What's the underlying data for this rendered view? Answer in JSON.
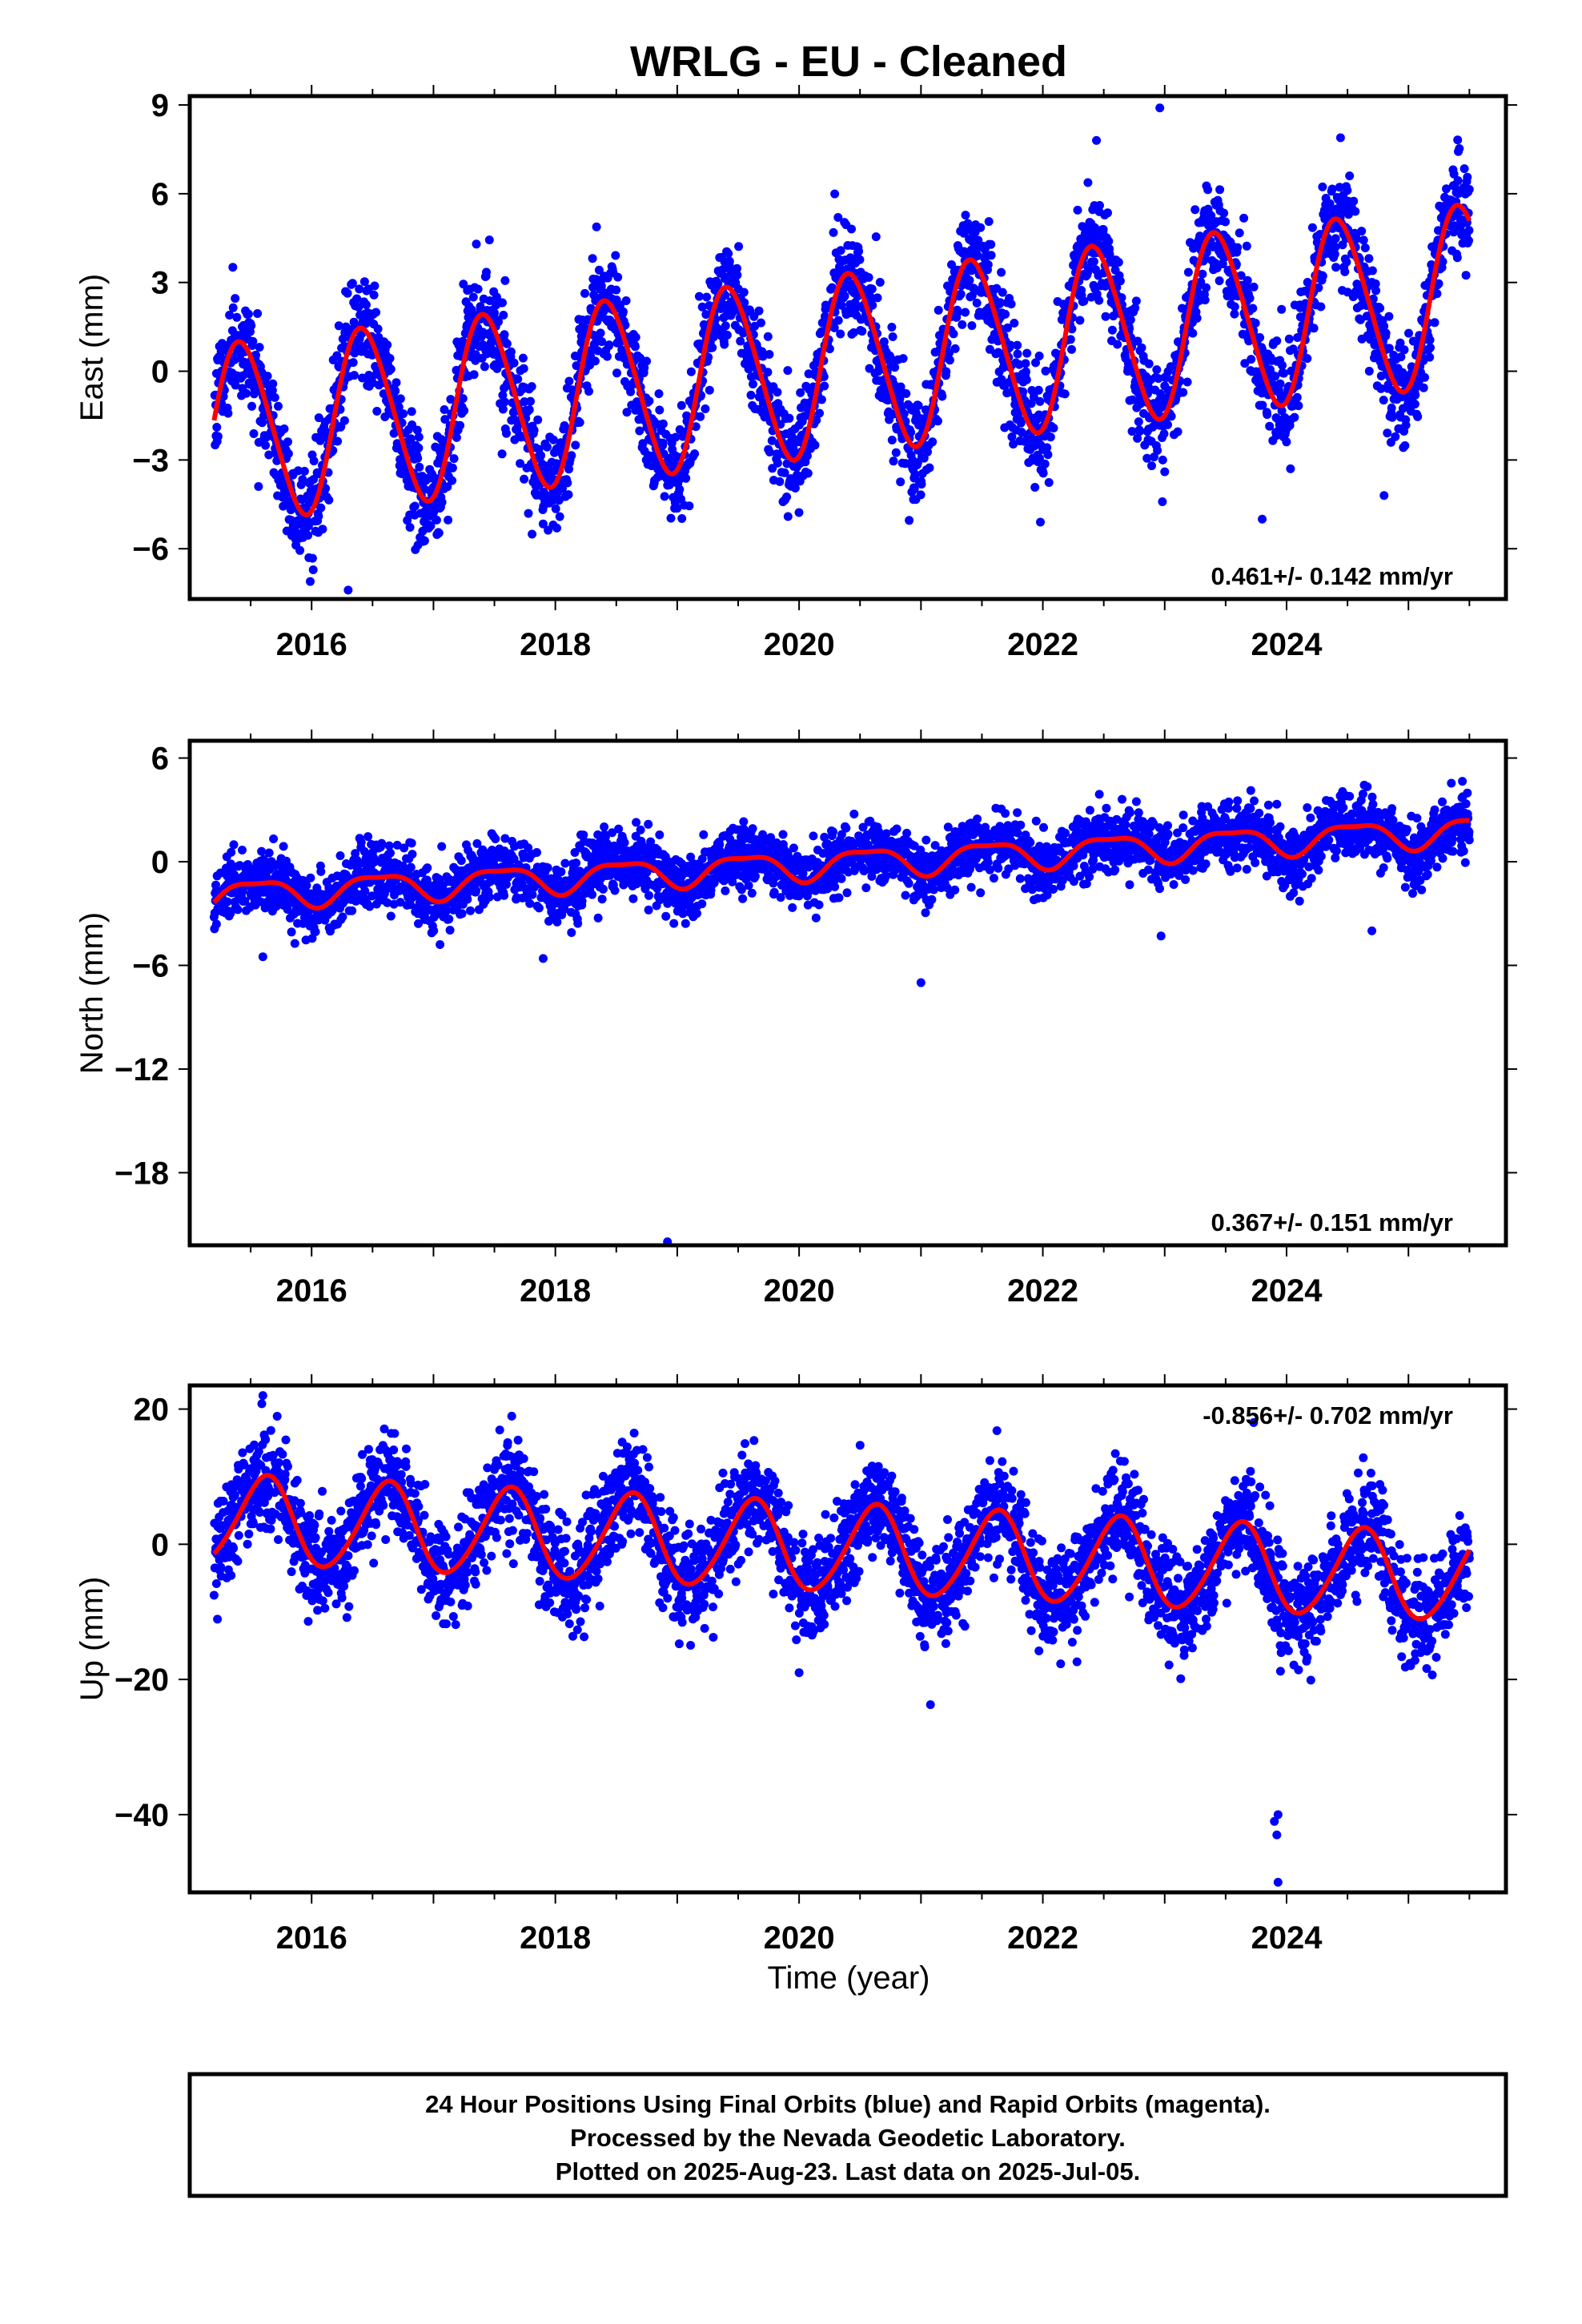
{
  "title": "WRLG  - EU - Cleaned",
  "xlabel": "Time (year)",
  "footer": [
    "24 Hour Positions Using Final Orbits (blue) and Rapid Orbits (magenta).",
    "Processed by the Nevada Geodetic Laboratory.",
    "Plotted on 2025-Aug-23. Last data on 2025-Jul-05."
  ],
  "colors": {
    "points": "#0000ff",
    "model": "#ff0000",
    "frame": "#000000"
  },
  "chart_data": [
    {
      "type": "scatter",
      "ylabel": "East (mm)",
      "rate": "0.461+/- 0.142 mm/yr",
      "rate_position": "bottom-right",
      "xlim": [
        2015.0,
        2025.8
      ],
      "ylim": [
        -7.7,
        9.3
      ],
      "x_ticks": [
        2016,
        2018,
        2020,
        2022,
        2024
      ],
      "y_ticks": [
        -6,
        -3,
        0,
        3,
        6,
        9
      ],
      "model": {
        "start": 2015.2,
        "end": 2025.5,
        "intercept": -2.13,
        "slope": 0.461,
        "annual_amplitude": 3.0,
        "annual_peak": 2015.43,
        "semiannual_amplitude": 0.3,
        "semiannual_peak": 2015.3
      },
      "scatter_sd": 0.9,
      "outliers": [
        [
          2022.96,
          8.9
        ],
        [
          2022.44,
          7.8
        ],
        [
          2023.8,
          -5.0
        ],
        [
          2016.3,
          -7.4
        ],
        [
          2021.98,
          -5.1
        ],
        [
          2023.0,
          -3.4
        ],
        [
          2024.8,
          -4.2
        ]
      ]
    },
    {
      "type": "scatter",
      "ylabel": "North (mm)",
      "rate": "0.367+/- 0.151 mm/yr",
      "rate_position": "bottom-right",
      "xlim": [
        2015.0,
        2025.8
      ],
      "ylim": [
        -22.2,
        7.0
      ],
      "x_ticks": [
        2016,
        2018,
        2020,
        2022,
        2024
      ],
      "y_ticks": [
        -18,
        -12,
        -6,
        0,
        6
      ],
      "model": {
        "start": 2015.2,
        "end": 2025.5,
        "intercept": -1.95,
        "slope": 0.367,
        "annual_amplitude": 0.8,
        "annual_peak": 2015.55,
        "semiannual_amplitude": 0.25,
        "semiannual_peak": 2015.3
      },
      "scatter_sd": 0.9,
      "outliers": [
        [
          2018.92,
          -22.0
        ],
        [
          2021.0,
          -7.0
        ],
        [
          2024.7,
          -4.0
        ],
        [
          2017.9,
          -5.6
        ],
        [
          2022.97,
          -4.3
        ],
        [
          2015.6,
          -5.5
        ]
      ]
    },
    {
      "type": "scatter",
      "ylabel": "Up (mm)",
      "rate": "-0.856+/- 0.702 mm/yr",
      "rate_position": "top-right",
      "xlim": [
        2015.0,
        2025.8
      ],
      "ylim": [
        -51.5,
        23.5
      ],
      "x_ticks": [
        2016,
        2018,
        2020,
        2022,
        2024
      ],
      "y_ticks": [
        -40,
        -20,
        0,
        20
      ],
      "model": {
        "start": 2015.2,
        "end": 2025.5,
        "intercept": 3.7,
        "slope": -0.856,
        "annual_amplitude": 6.5,
        "annual_peak": 2015.62,
        "semiannual_amplitude": 0.6,
        "semiannual_peak": 2015.2
      },
      "scatter_sd": 3.8,
      "outliers": [
        [
          2023.93,
          -50.0
        ],
        [
          2023.92,
          -43.0
        ],
        [
          2023.9,
          -41.0
        ],
        [
          2023.93,
          -40.0
        ],
        [
          2015.6,
          22.0
        ],
        [
          2020.0,
          -19.0
        ],
        [
          2023.73,
          18.0
        ]
      ]
    }
  ]
}
